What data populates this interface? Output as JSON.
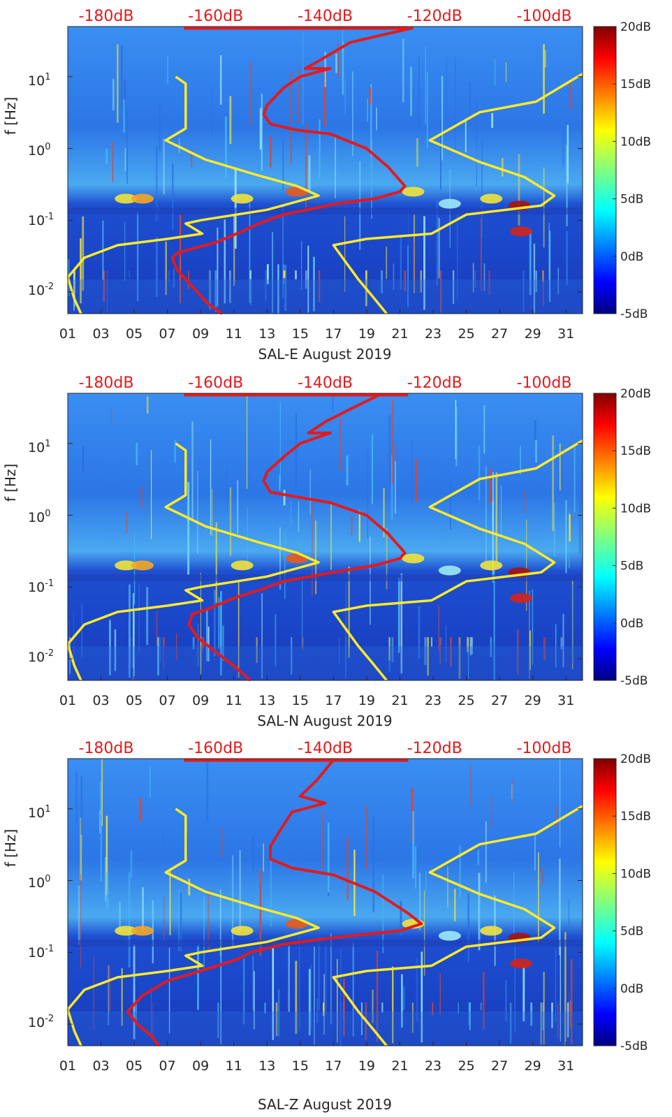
{
  "colors": {
    "background_band": "#1f5fd8",
    "noise_model": "#ffea2a",
    "response_curve": "#e31a1c",
    "db_scale_text": "#e31a1c"
  },
  "chart_data": [
    {
      "type": "heatmap",
      "station": "SAL-E",
      "xlabel": "SAL-E August 2019",
      "ylabel": "f [Hz]",
      "x_ticks": [
        "01",
        "03",
        "05",
        "07",
        "09",
        "11",
        "13",
        "15",
        "17",
        "19",
        "21",
        "23",
        "25",
        "27",
        "29",
        "31"
      ],
      "x_range_days": [
        1,
        32
      ],
      "y_scale": "log",
      "y_ticks": [
        "10^-2",
        "10^-1",
        "10^0",
        "10^1"
      ],
      "y_range_hz": [
        0.005,
        50
      ],
      "top_db_scale": [
        "-180dB",
        "-160dB",
        "-140dB",
        "-120dB",
        "-100dB"
      ],
      "colorbar": {
        "labels": [
          "20dB",
          "15dB",
          "10dB",
          "5dB",
          "0dB",
          "-5dB"
        ],
        "range_db": [
          -5,
          20
        ],
        "colormap": "jet"
      },
      "series": [
        {
          "color": "yellow",
          "points": [
            [
              7.5,
              10
            ],
            [
              8.1,
              8
            ],
            [
              8.1,
              1.9
            ],
            [
              6.9,
              1.3
            ],
            [
              9.3,
              0.7
            ],
            [
              12.5,
              0.42
            ],
            [
              14.8,
              0.3
            ],
            [
              16.1,
              0.22
            ],
            [
              13,
              0.14
            ],
            [
              9,
              0.1
            ],
            [
              8.1,
              0.09
            ],
            [
              9.1,
              0.065
            ],
            [
              7,
              0.055
            ],
            [
              4,
              0.045
            ],
            [
              2,
              0.03
            ],
            [
              1,
              0.016
            ],
            [
              1.4,
              0.008
            ],
            [
              1.8,
              0.005
            ]
          ]
        },
        {
          "color": "yellow",
          "points": [
            [
              32,
              11
            ],
            [
              29.2,
              4.5
            ],
            [
              25.8,
              3.2
            ],
            [
              22.8,
              1.3
            ],
            [
              25.8,
              0.65
            ],
            [
              28.5,
              0.4
            ],
            [
              30.3,
              0.22
            ],
            [
              29.5,
              0.16
            ],
            [
              25,
              0.12
            ],
            [
              22.9,
              0.065
            ],
            [
              19,
              0.055
            ],
            [
              17,
              0.045
            ],
            [
              18.5,
              0.015
            ],
            [
              19.3,
              0.009
            ],
            [
              20.2,
              0.005
            ]
          ]
        },
        {
          "color": "red",
          "points": [
            [
              21.8,
              48
            ],
            [
              18,
              30
            ],
            [
              16,
              16
            ],
            [
              15.3,
              13
            ],
            [
              16.8,
              13
            ],
            [
              15,
              10
            ],
            [
              14,
              7
            ],
            [
              13,
              4
            ],
            [
              12.8,
              3
            ],
            [
              13.2,
              2.2
            ],
            [
              14.8,
              1.8
            ],
            [
              16.8,
              1.6
            ],
            [
              19,
              1
            ],
            [
              20.3,
              0.55
            ],
            [
              21.3,
              0.3
            ],
            [
              21,
              0.25
            ],
            [
              19.5,
              0.2
            ],
            [
              17.2,
              0.17
            ],
            [
              14,
              0.12
            ],
            [
              12.5,
              0.09
            ],
            [
              11.5,
              0.07
            ],
            [
              10,
              0.05
            ],
            [
              8.5,
              0.04
            ],
            [
              7.6,
              0.035
            ],
            [
              7.3,
              0.03
            ],
            [
              7.6,
              0.02
            ],
            [
              8.5,
              0.012
            ],
            [
              9.4,
              0.007
            ],
            [
              10.3,
              0.005
            ]
          ]
        }
      ]
    },
    {
      "type": "heatmap",
      "station": "SAL-N",
      "xlabel": "SAL-N August 2019",
      "ylabel": "f [Hz]",
      "x_ticks": [
        "01",
        "03",
        "05",
        "07",
        "09",
        "11",
        "13",
        "15",
        "17",
        "19",
        "21",
        "23",
        "25",
        "27",
        "29",
        "31"
      ],
      "x_range_days": [
        1,
        32
      ],
      "y_scale": "log",
      "y_ticks": [
        "10^-2",
        "10^-1",
        "10^0",
        "10^1"
      ],
      "y_range_hz": [
        0.005,
        50
      ],
      "top_db_scale": [
        "-180dB",
        "-160dB",
        "-140dB",
        "-120dB",
        "-100dB"
      ],
      "colorbar": {
        "labels": [
          "20dB",
          "15dB",
          "10dB",
          "5dB",
          "0dB",
          "-5dB"
        ],
        "range_db": [
          -5,
          20
        ],
        "colormap": "jet"
      },
      "series": [
        {
          "color": "yellow",
          "points": [
            [
              7.5,
              10
            ],
            [
              8.1,
              8
            ],
            [
              8.1,
              1.9
            ],
            [
              6.9,
              1.3
            ],
            [
              9.3,
              0.7
            ],
            [
              12.5,
              0.42
            ],
            [
              14.8,
              0.3
            ],
            [
              16.1,
              0.22
            ],
            [
              13,
              0.14
            ],
            [
              9,
              0.1
            ],
            [
              8.1,
              0.09
            ],
            [
              9.1,
              0.065
            ],
            [
              7,
              0.055
            ],
            [
              4,
              0.045
            ],
            [
              2,
              0.03
            ],
            [
              1,
              0.016
            ],
            [
              1.4,
              0.008
            ],
            [
              1.8,
              0.005
            ]
          ]
        },
        {
          "color": "yellow",
          "points": [
            [
              32,
              11
            ],
            [
              29.2,
              4.5
            ],
            [
              25.8,
              3.2
            ],
            [
              22.8,
              1.3
            ],
            [
              25.8,
              0.65
            ],
            [
              28.5,
              0.4
            ],
            [
              30.3,
              0.22
            ],
            [
              29.5,
              0.16
            ],
            [
              25,
              0.12
            ],
            [
              22.9,
              0.065
            ],
            [
              19,
              0.055
            ],
            [
              17,
              0.045
            ],
            [
              18.5,
              0.015
            ],
            [
              19.3,
              0.009
            ],
            [
              20.2,
              0.005
            ]
          ]
        },
        {
          "color": "red",
          "points": [
            [
              19.8,
              48
            ],
            [
              18,
              30
            ],
            [
              16.5,
              20
            ],
            [
              15.5,
              14
            ],
            [
              16.8,
              14
            ],
            [
              15,
              10
            ],
            [
              14,
              6.5
            ],
            [
              13,
              4
            ],
            [
              12.8,
              3
            ],
            [
              13.2,
              2.1
            ],
            [
              14.8,
              1.8
            ],
            [
              16.8,
              1.5
            ],
            [
              19,
              1
            ],
            [
              20.3,
              0.55
            ],
            [
              21.3,
              0.3
            ],
            [
              21,
              0.25
            ],
            [
              19.5,
              0.2
            ],
            [
              17,
              0.16
            ],
            [
              14,
              0.12
            ],
            [
              12.5,
              0.09
            ],
            [
              11,
              0.07
            ],
            [
              9.5,
              0.05
            ],
            [
              8.5,
              0.042
            ],
            [
              8.3,
              0.03
            ],
            [
              8.8,
              0.02
            ],
            [
              10,
              0.012
            ],
            [
              11,
              0.008
            ],
            [
              12,
              0.005
            ]
          ]
        }
      ]
    },
    {
      "type": "heatmap",
      "station": "SAL-Z",
      "xlabel": "SAL-Z August 2019",
      "ylabel": "f [Hz]",
      "x_ticks": [
        "01",
        "03",
        "05",
        "07",
        "09",
        "11",
        "13",
        "15",
        "17",
        "19",
        "21",
        "23",
        "25",
        "27",
        "29",
        "31"
      ],
      "x_range_days": [
        1,
        32
      ],
      "y_scale": "log",
      "y_ticks": [
        "10^-2",
        "10^-1",
        "10^0",
        "10^1"
      ],
      "y_range_hz": [
        0.005,
        50
      ],
      "top_db_scale": [
        "-180dB",
        "-160dB",
        "-140dB",
        "-120dB",
        "-100dB"
      ],
      "colorbar": {
        "labels": [
          "20dB",
          "15dB",
          "10dB",
          "5dB",
          "0dB",
          "-5dB"
        ],
        "range_db": [
          -5,
          20
        ],
        "colormap": "jet"
      },
      "series": [
        {
          "color": "yellow",
          "points": [
            [
              7.5,
              10
            ],
            [
              8.1,
              8
            ],
            [
              8.1,
              1.9
            ],
            [
              6.9,
              1.3
            ],
            [
              9.3,
              0.7
            ],
            [
              12.5,
              0.42
            ],
            [
              14.8,
              0.3
            ],
            [
              16.1,
              0.22
            ],
            [
              13,
              0.14
            ],
            [
              9,
              0.1
            ],
            [
              8.1,
              0.09
            ],
            [
              9.1,
              0.065
            ],
            [
              7,
              0.055
            ],
            [
              4,
              0.045
            ],
            [
              2,
              0.03
            ],
            [
              1,
              0.016
            ],
            [
              1.4,
              0.008
            ],
            [
              1.8,
              0.005
            ]
          ]
        },
        {
          "color": "yellow",
          "points": [
            [
              32,
              11
            ],
            [
              29.2,
              4.5
            ],
            [
              25.8,
              3.2
            ],
            [
              22.8,
              1.3
            ],
            [
              25.8,
              0.65
            ],
            [
              28.5,
              0.4
            ],
            [
              30.3,
              0.22
            ],
            [
              29.5,
              0.16
            ],
            [
              25,
              0.12
            ],
            [
              22.9,
              0.065
            ],
            [
              19,
              0.055
            ],
            [
              17,
              0.045
            ],
            [
              18.5,
              0.015
            ],
            [
              19.3,
              0.009
            ],
            [
              20.2,
              0.005
            ]
          ]
        },
        {
          "color": "red",
          "points": [
            [
              17,
              48
            ],
            [
              16,
              25
            ],
            [
              15,
              15
            ],
            [
              16.5,
              12
            ],
            [
              14.5,
              9
            ],
            [
              14,
              6
            ],
            [
              13.2,
              3
            ],
            [
              13.2,
              2
            ],
            [
              14.5,
              1.5
            ],
            [
              17,
              1.2
            ],
            [
              19.5,
              0.7
            ],
            [
              21.5,
              0.35
            ],
            [
              22.3,
              0.25
            ],
            [
              21,
              0.2
            ],
            [
              17,
              0.16
            ],
            [
              14,
              0.13
            ],
            [
              12,
              0.1
            ],
            [
              11.2,
              0.08
            ],
            [
              9,
              0.055
            ],
            [
              7,
              0.04
            ],
            [
              5.5,
              0.025
            ],
            [
              4.6,
              0.015
            ],
            [
              5.2,
              0.01
            ],
            [
              6,
              0.007
            ],
            [
              6.5,
              0.005
            ]
          ]
        }
      ]
    }
  ]
}
